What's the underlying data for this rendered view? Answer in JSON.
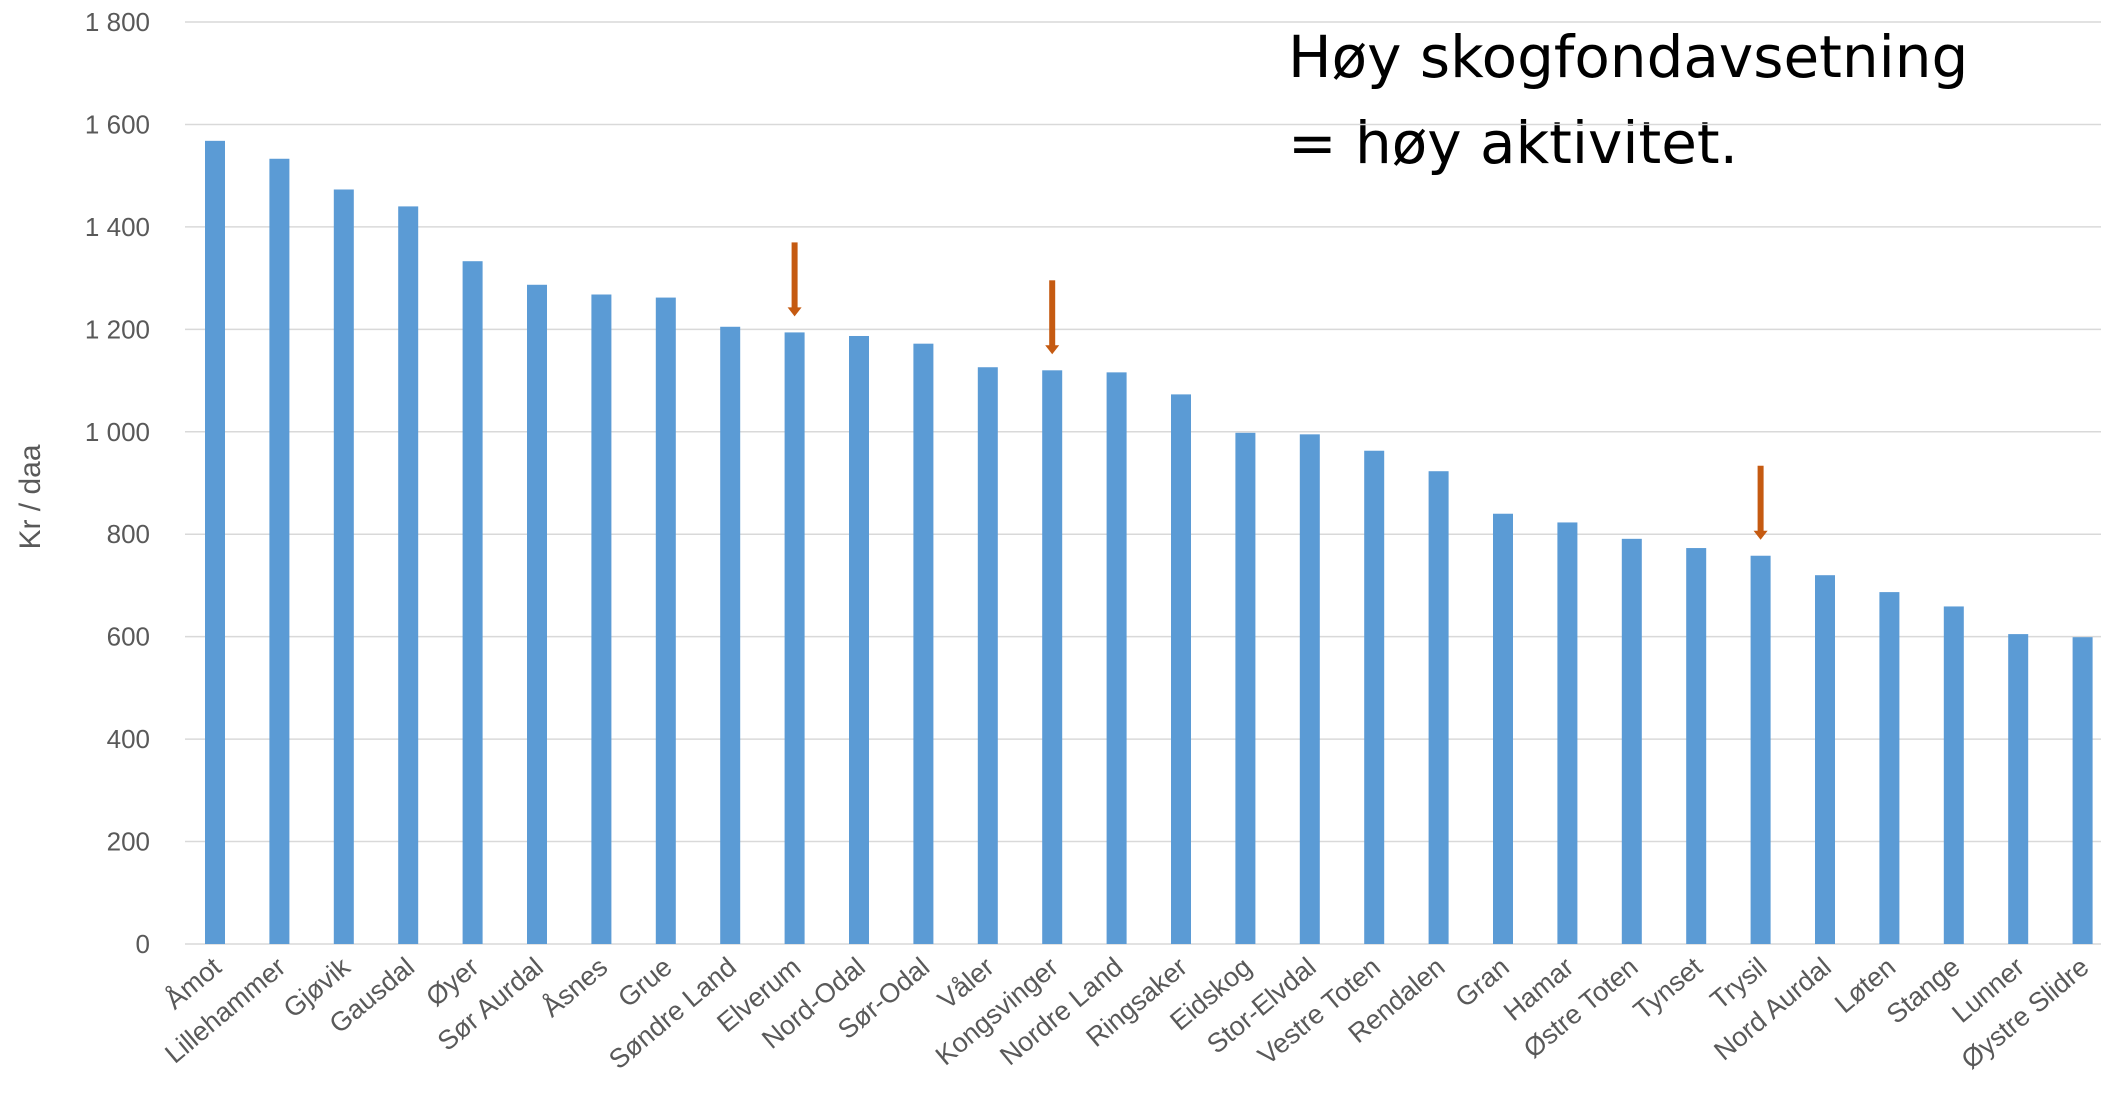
{
  "chart_data": {
    "type": "bar",
    "title": "",
    "xlabel": "",
    "ylabel": "Kr / daa",
    "ylim": [
      0,
      1800
    ],
    "yticks": [
      0,
      200,
      400,
      600,
      800,
      1000,
      1200,
      1400,
      1600,
      1800
    ],
    "ytick_labels": [
      "0",
      "200",
      "400",
      "600",
      "800",
      "1 000",
      "1 200",
      "1 400",
      "1 600",
      "1 800"
    ],
    "grid": true,
    "categories": [
      "Åmot",
      "Lillehammer",
      "Gjøvik",
      "Gausdal",
      "Øyer",
      "Sør Aurdal",
      "Åsnes",
      "Grue",
      "Søndre Land",
      "Elverum",
      "Nord-Odal",
      "Sør-Odal",
      "Våler",
      "Kongsvinger",
      "Nordre Land",
      "Ringsaker",
      "Eidskog",
      "Stor-Elvdal",
      "Vestre Toten",
      "Rendalen",
      "Gran",
      "Hamar",
      "Østre Toten",
      "Tynset",
      "Trysil",
      "Nord Aurdal",
      "Løten",
      "Stange",
      "Lunner",
      "Øystre Slidre"
    ],
    "values": [
      1568,
      1533,
      1473,
      1440,
      1333,
      1287,
      1268,
      1262,
      1205,
      1194,
      1187,
      1172,
      1126,
      1120,
      1116,
      1073,
      998,
      995,
      963,
      923,
      840,
      823,
      791,
      773,
      758,
      720,
      687,
      659,
      605,
      599
    ],
    "highlighted_categories": [
      "Elverum",
      "Kongsvinger",
      "Trysil"
    ],
    "bar_color": "#5B9BD5",
    "arrow_color": "#C55A11",
    "grid_color": "#D9D9D9",
    "annotation": [
      "Høy skogfondavsetning",
      "= høy aktivitet."
    ]
  }
}
